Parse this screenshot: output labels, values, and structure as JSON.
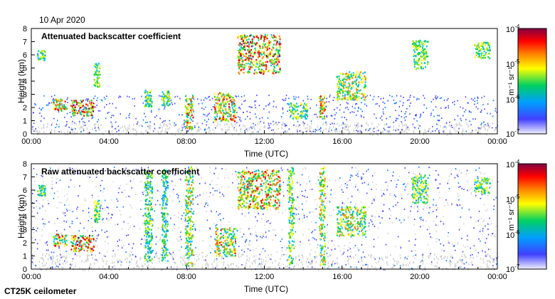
{
  "date_label": "10 Apr 2020",
  "instrument_label": "CT25K ceilometer",
  "chart_data": [
    {
      "type": "heatmap",
      "title": "Attenuated backscatter coefficient",
      "xlabel": "Time (UTC)",
      "ylabel": "Height (km)",
      "x_ticks": [
        "00:00",
        "04:00",
        "08:00",
        "12:00",
        "16:00",
        "20:00",
        "00:00"
      ],
      "y_ticks": [
        "0",
        "1",
        "2",
        "3",
        "4",
        "5",
        "6",
        "7",
        "8"
      ],
      "xlim": [
        0,
        24
      ],
      "ylim": [
        0,
        8
      ],
      "colorbar": {
        "label": "m⁻¹ sr⁻¹",
        "scale": "log",
        "ticks": [
          "10",
          "10",
          "10",
          "10"
        ],
        "exponents": [
          "-4",
          "-5",
          "-6",
          "-7"
        ],
        "colors": [
          "#f0f0ff",
          "#4040ff",
          "#00a0ff",
          "#00d060",
          "#ffff00",
          "#ff8000",
          "#ff0000",
          "#800040"
        ]
      },
      "features": [
        {
          "t0": 0.3,
          "t1": 0.7,
          "h0": 5.6,
          "h1": 6.4,
          "level": 0.6
        },
        {
          "t0": 1.1,
          "t1": 1.8,
          "h0": 1.8,
          "h1": 2.7,
          "level": 0.8
        },
        {
          "t0": 2.0,
          "t1": 3.2,
          "h0": 1.4,
          "h1": 2.6,
          "level": 0.85
        },
        {
          "t0": 3.2,
          "t1": 3.5,
          "h0": 3.6,
          "h1": 5.4,
          "level": 0.6
        },
        {
          "t0": 5.8,
          "t1": 6.2,
          "h0": 2.0,
          "h1": 3.4,
          "level": 0.6
        },
        {
          "t0": 6.7,
          "t1": 7.1,
          "h0": 2.2,
          "h1": 3.3,
          "level": 0.55
        },
        {
          "t0": 7.9,
          "t1": 8.3,
          "h0": 0.4,
          "h1": 3.0,
          "level": 0.75
        },
        {
          "t0": 9.4,
          "t1": 10.5,
          "h0": 1.0,
          "h1": 3.2,
          "level": 0.8
        },
        {
          "t0": 10.6,
          "t1": 12.8,
          "h0": 4.6,
          "h1": 7.6,
          "level": 0.85
        },
        {
          "t0": 13.2,
          "t1": 14.2,
          "h0": 1.2,
          "h1": 2.4,
          "level": 0.6
        },
        {
          "t0": 14.8,
          "t1": 15.1,
          "h0": 1.2,
          "h1": 3.0,
          "level": 0.8
        },
        {
          "t0": 15.7,
          "t1": 17.2,
          "h0": 2.6,
          "h1": 4.8,
          "level": 0.7
        },
        {
          "t0": 19.6,
          "t1": 20.4,
          "h0": 5.0,
          "h1": 7.2,
          "level": 0.6
        },
        {
          "t0": 22.8,
          "t1": 23.6,
          "h0": 5.8,
          "h1": 7.0,
          "level": 0.6
        }
      ]
    },
    {
      "type": "heatmap",
      "title": "Raw attenuated backscatter coefficient",
      "xlabel": "Time (UTC)",
      "ylabel": "Height (km)",
      "x_ticks": [
        "00:00",
        "04:00",
        "08:00",
        "12:00",
        "16:00",
        "20:00",
        "00:00"
      ],
      "y_ticks": [
        "0",
        "1",
        "2",
        "3",
        "4",
        "5",
        "6",
        "7",
        "8"
      ],
      "xlim": [
        0,
        24
      ],
      "ylim": [
        0,
        8
      ],
      "colorbar": {
        "label": "m⁻¹ sr⁻¹",
        "scale": "log",
        "ticks": [
          "10",
          "10",
          "10",
          "10"
        ],
        "exponents": [
          "-4",
          "-5",
          "-6",
          "-7"
        ],
        "colors": [
          "#f0f0ff",
          "#4040ff",
          "#00a0ff",
          "#00d060",
          "#ffff00",
          "#ff8000",
          "#ff0000",
          "#800040"
        ]
      },
      "features": [
        {
          "t0": 0.3,
          "t1": 0.7,
          "h0": 5.6,
          "h1": 6.4,
          "level": 0.6
        },
        {
          "t0": 1.1,
          "t1": 1.8,
          "h0": 1.8,
          "h1": 2.7,
          "level": 0.8
        },
        {
          "t0": 2.0,
          "t1": 3.2,
          "h0": 1.4,
          "h1": 2.6,
          "level": 0.85
        },
        {
          "t0": 3.2,
          "t1": 3.5,
          "h0": 3.6,
          "h1": 5.4,
          "level": 0.6
        },
        {
          "t0": 5.8,
          "t1": 6.2,
          "h0": 0.6,
          "h1": 7.6,
          "level": 0.55
        },
        {
          "t0": 6.7,
          "t1": 7.0,
          "h0": 0.6,
          "h1": 7.6,
          "level": 0.5
        },
        {
          "t0": 7.9,
          "t1": 8.3,
          "h0": 0.2,
          "h1": 7.8,
          "level": 0.65
        },
        {
          "t0": 9.4,
          "t1": 10.5,
          "h0": 1.0,
          "h1": 3.2,
          "level": 0.75
        },
        {
          "t0": 10.6,
          "t1": 12.8,
          "h0": 4.6,
          "h1": 7.6,
          "level": 0.8
        },
        {
          "t0": 13.2,
          "t1": 13.5,
          "h0": 0.4,
          "h1": 7.8,
          "level": 0.6
        },
        {
          "t0": 14.8,
          "t1": 15.1,
          "h0": 0.4,
          "h1": 7.8,
          "level": 0.7
        },
        {
          "t0": 15.7,
          "t1": 17.2,
          "h0": 2.6,
          "h1": 4.8,
          "level": 0.7
        },
        {
          "t0": 19.6,
          "t1": 20.4,
          "h0": 5.0,
          "h1": 7.2,
          "level": 0.6
        },
        {
          "t0": 22.8,
          "t1": 23.6,
          "h0": 5.8,
          "h1": 7.0,
          "level": 0.6
        }
      ]
    }
  ]
}
